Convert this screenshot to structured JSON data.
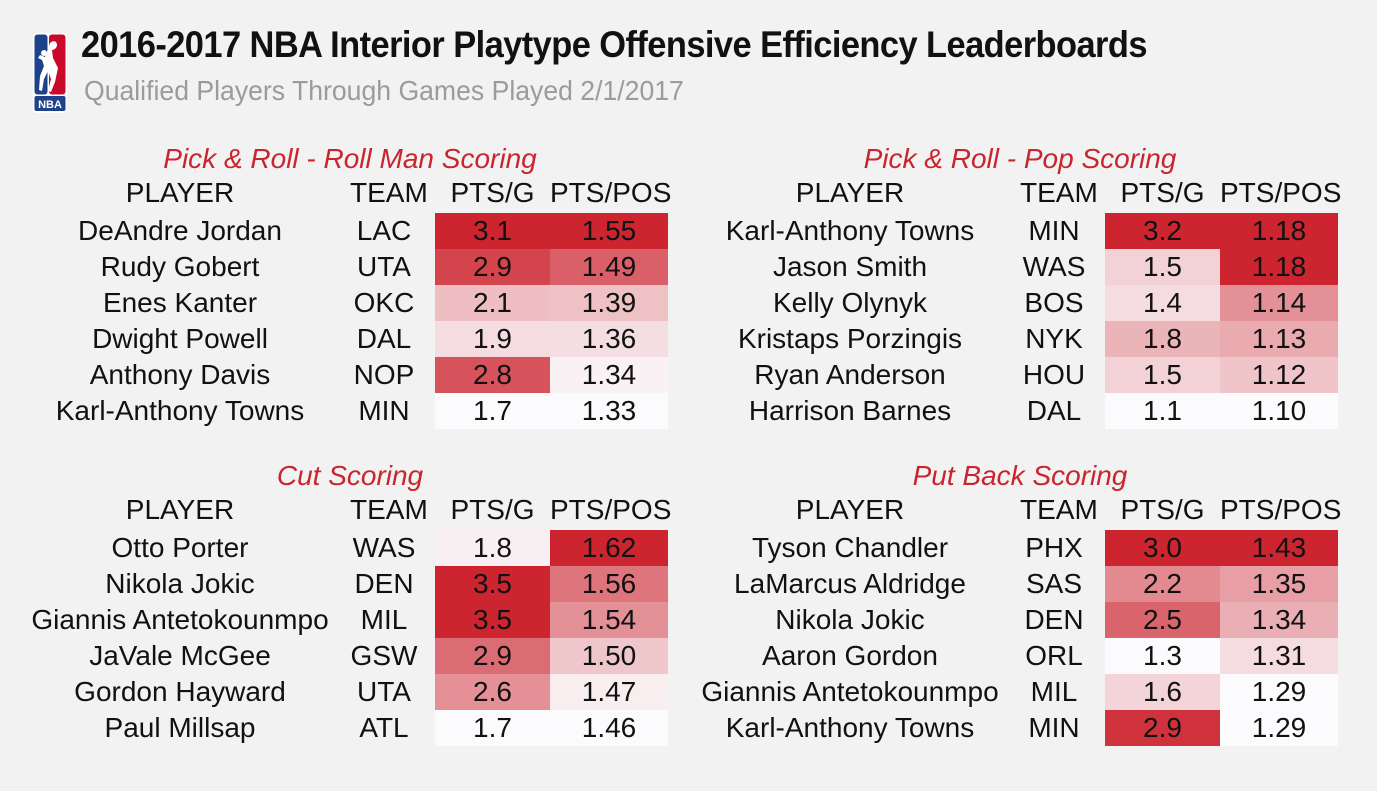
{
  "header": {
    "logo_text": "NBA",
    "title": "2016-2017 NBA Interior Playtype Offensive Efficiency Leaderboards",
    "subtitle": "Qualified Players Through Games Played 2/1/2017"
  },
  "colors": {
    "accent": "#c9252e",
    "background": "#f2f2f2",
    "heat_high": "#cc2530",
    "heat_low": "#fbfbfd",
    "logo_blue": "#1d428a",
    "logo_red": "#c9082a"
  },
  "chart_data": [
    {
      "type": "table",
      "title": "Pick & Roll - Roll Man Scoring",
      "columns": [
        "PLAYER",
        "TEAM",
        "PTS/G",
        "PTS/POS"
      ],
      "rows": [
        {
          "player": "DeAndre Jordan",
          "team": "LAC",
          "pts_g": "3.1",
          "pts_pos": "1.55"
        },
        {
          "player": "Rudy Gobert",
          "team": "UTA",
          "pts_g": "2.9",
          "pts_pos": "1.49"
        },
        {
          "player": "Enes Kanter",
          "team": "OKC",
          "pts_g": "2.1",
          "pts_pos": "1.39"
        },
        {
          "player": "Dwight Powell",
          "team": "DAL",
          "pts_g": "1.9",
          "pts_pos": "1.36"
        },
        {
          "player": "Anthony Davis",
          "team": "NOP",
          "pts_g": "2.8",
          "pts_pos": "1.34"
        },
        {
          "player": "Karl-Anthony Towns",
          "team": "MIN",
          "pts_g": "1.7",
          "pts_pos": "1.33"
        }
      ]
    },
    {
      "type": "table",
      "title": "Pick & Roll - Pop Scoring",
      "columns": [
        "PLAYER",
        "TEAM",
        "PTS/G",
        "PTS/POS"
      ],
      "rows": [
        {
          "player": "Karl-Anthony Towns",
          "team": "MIN",
          "pts_g": "3.2",
          "pts_pos": "1.18"
        },
        {
          "player": "Jason Smith",
          "team": "WAS",
          "pts_g": "1.5",
          "pts_pos": "1.18"
        },
        {
          "player": "Kelly Olynyk",
          "team": "BOS",
          "pts_g": "1.4",
          "pts_pos": "1.14"
        },
        {
          "player": "Kristaps Porzingis",
          "team": "NYK",
          "pts_g": "1.8",
          "pts_pos": "1.13"
        },
        {
          "player": "Ryan Anderson",
          "team": "HOU",
          "pts_g": "1.5",
          "pts_pos": "1.12"
        },
        {
          "player": "Harrison Barnes",
          "team": "DAL",
          "pts_g": "1.1",
          "pts_pos": "1.10"
        }
      ]
    },
    {
      "type": "table",
      "title": "Cut Scoring",
      "columns": [
        "PLAYER",
        "TEAM",
        "PTS/G",
        "PTS/POS"
      ],
      "rows": [
        {
          "player": "Otto Porter",
          "team": "WAS",
          "pts_g": "1.8",
          "pts_pos": "1.62"
        },
        {
          "player": "Nikola Jokic",
          "team": "DEN",
          "pts_g": "3.5",
          "pts_pos": "1.56"
        },
        {
          "player": "Giannis Antetokounmpo",
          "team": "MIL",
          "pts_g": "3.5",
          "pts_pos": "1.54"
        },
        {
          "player": "JaVale McGee",
          "team": "GSW",
          "pts_g": "2.9",
          "pts_pos": "1.50"
        },
        {
          "player": "Gordon Hayward",
          "team": "UTA",
          "pts_g": "2.6",
          "pts_pos": "1.47"
        },
        {
          "player": "Paul Millsap",
          "team": "ATL",
          "pts_g": "1.7",
          "pts_pos": "1.46"
        }
      ]
    },
    {
      "type": "table",
      "title": "Put Back Scoring",
      "columns": [
        "PLAYER",
        "TEAM",
        "PTS/G",
        "PTS/POS"
      ],
      "rows": [
        {
          "player": "Tyson Chandler",
          "team": "PHX",
          "pts_g": "3.0",
          "pts_pos": "1.43"
        },
        {
          "player": "LaMarcus Aldridge",
          "team": "SAS",
          "pts_g": "2.2",
          "pts_pos": "1.35"
        },
        {
          "player": "Nikola Jokic",
          "team": "DEN",
          "pts_g": "2.5",
          "pts_pos": "1.34"
        },
        {
          "player": "Aaron Gordon",
          "team": "ORL",
          "pts_g": "1.3",
          "pts_pos": "1.31"
        },
        {
          "player": "Giannis Antetokounmpo",
          "team": "MIL",
          "pts_g": "1.6",
          "pts_pos": "1.29"
        },
        {
          "player": "Karl-Anthony Towns",
          "team": "MIN",
          "pts_g": "2.9",
          "pts_pos": "1.29"
        }
      ]
    }
  ]
}
